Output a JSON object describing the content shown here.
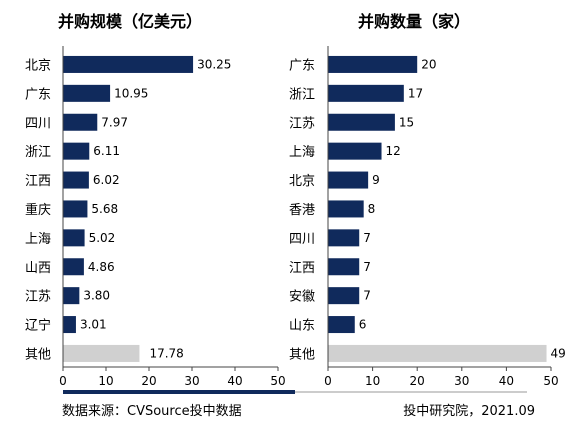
{
  "chart_data": [
    {
      "type": "bar",
      "orientation": "horizontal",
      "title": "并购规模（亿美元）",
      "categories": [
        "北京",
        "广东",
        "四川",
        "浙江",
        "江西",
        "重庆",
        "上海",
        "山西",
        "江苏",
        "辽宁",
        "其他"
      ],
      "values": [
        30.25,
        10.95,
        7.97,
        6.11,
        6.02,
        5.68,
        5.02,
        4.86,
        3.8,
        3.01,
        17.78
      ],
      "value_labels": [
        "30.25",
        "10.95",
        "7.97",
        "6.11",
        "6.02",
        "5.68",
        "5.02",
        "4.86",
        "3.80",
        "3.01",
        "17.78"
      ],
      "xlim": [
        0,
        50
      ],
      "xticks": [
        "0",
        "10",
        "20",
        "30",
        "40",
        "50"
      ],
      "grid": false,
      "colors": {
        "bar": "#102a5c",
        "other": "#d0d0d0"
      }
    },
    {
      "type": "bar",
      "orientation": "horizontal",
      "title": "并购数量（家）",
      "categories": [
        "广东",
        "浙江",
        "江苏",
        "上海",
        "北京",
        "香港",
        "四川",
        "江西",
        "安徽",
        "山东",
        "其他"
      ],
      "values": [
        20,
        17,
        15,
        12,
        9,
        8,
        7,
        7,
        7,
        6,
        49
      ],
      "value_labels": [
        "20",
        "17",
        "15",
        "12",
        "9",
        "8",
        "7",
        "7",
        "7",
        "6",
        "49"
      ],
      "xlim": [
        0,
        50
      ],
      "xticks": [
        "0",
        "10",
        "20",
        "30",
        "40",
        "50"
      ],
      "grid": false,
      "colors": {
        "bar": "#102a5c",
        "other": "#d0d0d0"
      }
    }
  ],
  "footer": {
    "source": "数据来源：CVSource投中数据",
    "credit": "投中研究院，2021.09"
  },
  "divider_colors": {
    "dark": "#102a5c",
    "light": "#cccccc"
  }
}
